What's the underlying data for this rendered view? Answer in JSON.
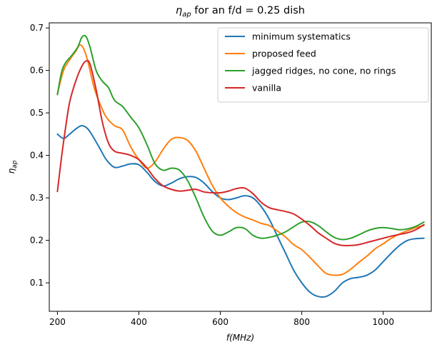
{
  "chart_data": {
    "type": "line",
    "title": "η_ap for an f/d = 0.25 dish",
    "xlabel": "f(MHz)",
    "ylabel": "η_ap",
    "xlim": [
      180,
      1118
    ],
    "ylim": [
      0.033,
      0.712
    ],
    "xticks": [
      200,
      400,
      600,
      800,
      1000
    ],
    "yticks": [
      0.1,
      0.2,
      0.3,
      0.4,
      0.5,
      0.6,
      0.7
    ],
    "xtick_labels": [
      "200",
      "400",
      "600",
      "800",
      "1000"
    ],
    "ytick_labels": [
      "0.1",
      "0.2",
      "0.3",
      "0.4",
      "0.5",
      "0.6",
      "0.7"
    ],
    "grid": false,
    "legend_position": "upper-right",
    "series": [
      {
        "name": "minimum systematics",
        "color": "#1f77b4",
        "x": [
          200,
          215,
          230,
          245,
          260,
          275,
          290,
          305,
          320,
          340,
          360,
          380,
          400,
          420,
          440,
          460,
          480,
          500,
          520,
          540,
          560,
          580,
          600,
          620,
          640,
          660,
          680,
          700,
          720,
          740,
          760,
          780,
          800,
          820,
          840,
          860,
          880,
          900,
          920,
          940,
          960,
          980,
          1000,
          1020,
          1040,
          1060,
          1080,
          1100
        ],
        "y": [
          0.45,
          0.44,
          0.45,
          0.462,
          0.47,
          0.462,
          0.44,
          0.415,
          0.39,
          0.372,
          0.375,
          0.38,
          0.378,
          0.36,
          0.338,
          0.328,
          0.335,
          0.345,
          0.35,
          0.348,
          0.335,
          0.315,
          0.3,
          0.296,
          0.3,
          0.305,
          0.3,
          0.28,
          0.25,
          0.21,
          0.17,
          0.13,
          0.1,
          0.078,
          0.068,
          0.068,
          0.08,
          0.1,
          0.11,
          0.113,
          0.118,
          0.13,
          0.15,
          0.17,
          0.188,
          0.2,
          0.204,
          0.205
        ]
      },
      {
        "name": "proposed feed",
        "color": "#ff7f0e",
        "x": [
          200,
          215,
          230,
          245,
          255,
          265,
          275,
          290,
          305,
          320,
          340,
          360,
          380,
          400,
          420,
          440,
          460,
          480,
          500,
          520,
          540,
          560,
          580,
          600,
          620,
          640,
          660,
          680,
          700,
          720,
          740,
          760,
          780,
          800,
          820,
          840,
          860,
          880,
          900,
          920,
          940,
          960,
          980,
          1000,
          1020,
          1040,
          1060,
          1080,
          1100
        ],
        "y": [
          0.545,
          0.6,
          0.625,
          0.645,
          0.66,
          0.65,
          0.62,
          0.56,
          0.52,
          0.49,
          0.47,
          0.46,
          0.42,
          0.39,
          0.37,
          0.385,
          0.415,
          0.438,
          0.442,
          0.435,
          0.41,
          0.37,
          0.33,
          0.3,
          0.28,
          0.265,
          0.255,
          0.248,
          0.24,
          0.235,
          0.222,
          0.208,
          0.19,
          0.178,
          0.16,
          0.14,
          0.122,
          0.118,
          0.12,
          0.132,
          0.148,
          0.163,
          0.18,
          0.192,
          0.205,
          0.215,
          0.223,
          0.23,
          0.235
        ]
      },
      {
        "name": "jagged ridges, no cone, no rings",
        "color": "#2ca02c",
        "x": [
          200,
          210,
          220,
          235,
          250,
          260,
          270,
          280,
          295,
          310,
          325,
          340,
          360,
          380,
          400,
          420,
          440,
          460,
          480,
          500,
          520,
          540,
          560,
          580,
          600,
          620,
          640,
          660,
          680,
          700,
          720,
          740,
          760,
          780,
          800,
          820,
          840,
          860,
          880,
          900,
          920,
          940,
          960,
          980,
          1000,
          1020,
          1040,
          1060,
          1080,
          1100
        ],
        "y": [
          0.543,
          0.595,
          0.618,
          0.635,
          0.655,
          0.678,
          0.68,
          0.655,
          0.6,
          0.575,
          0.56,
          0.53,
          0.515,
          0.49,
          0.465,
          0.425,
          0.38,
          0.365,
          0.37,
          0.365,
          0.34,
          0.3,
          0.255,
          0.222,
          0.212,
          0.22,
          0.23,
          0.228,
          0.212,
          0.205,
          0.207,
          0.212,
          0.22,
          0.232,
          0.243,
          0.244,
          0.235,
          0.22,
          0.207,
          0.202,
          0.205,
          0.213,
          0.222,
          0.228,
          0.23,
          0.228,
          0.225,
          0.227,
          0.233,
          0.243
        ]
      },
      {
        "name": "vanilla",
        "color": "#d62728",
        "x": [
          200,
          210,
          220,
          230,
          245,
          260,
          270,
          280,
          295,
          310,
          325,
          340,
          360,
          380,
          400,
          420,
          440,
          460,
          480,
          500,
          520,
          540,
          560,
          580,
          600,
          620,
          640,
          660,
          680,
          700,
          720,
          740,
          760,
          780,
          800,
          820,
          840,
          860,
          880,
          900,
          920,
          940,
          960,
          980,
          1000,
          1020,
          1040,
          1060,
          1080,
          1100
        ],
        "y": [
          0.315,
          0.395,
          0.465,
          0.525,
          0.575,
          0.61,
          0.622,
          0.615,
          0.555,
          0.48,
          0.43,
          0.41,
          0.405,
          0.4,
          0.39,
          0.37,
          0.345,
          0.328,
          0.32,
          0.316,
          0.318,
          0.32,
          0.314,
          0.312,
          0.312,
          0.316,
          0.322,
          0.323,
          0.31,
          0.29,
          0.277,
          0.272,
          0.268,
          0.262,
          0.25,
          0.235,
          0.218,
          0.205,
          0.193,
          0.188,
          0.188,
          0.19,
          0.195,
          0.2,
          0.205,
          0.21,
          0.214,
          0.218,
          0.225,
          0.237
        ]
      }
    ]
  }
}
